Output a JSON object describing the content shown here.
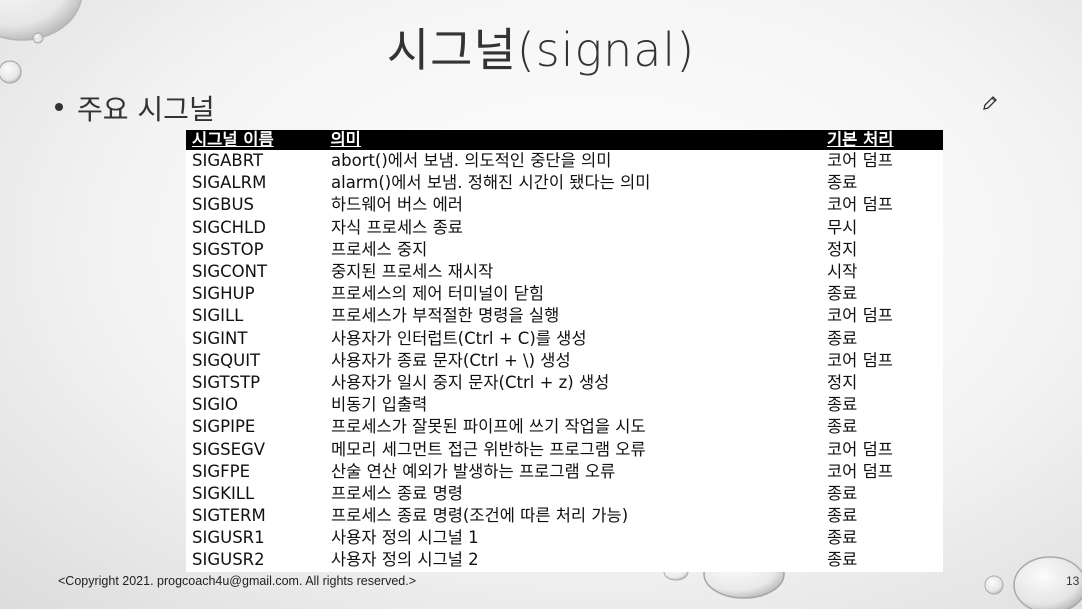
{
  "slide": {
    "title": "시그널(signal)",
    "bullet": "주요 시그널",
    "copyright": "<Copyright 2021. progcoach4u@gmail.com. All rights reserved.>",
    "page_number": "13"
  },
  "table": {
    "headers": [
      "시그널 이름",
      "의미",
      "기본 처리"
    ],
    "rows": [
      [
        "SIGABRT",
        "abort()에서 보냄. 의도적인 중단을 의미",
        "코어 덤프"
      ],
      [
        "SIGALRM",
        "alarm()에서 보냄. 정해진 시간이 됐다는 의미",
        "종료"
      ],
      [
        "SIGBUS",
        "하드웨어 버스 에러",
        "코어 덤프"
      ],
      [
        "SIGCHLD",
        "자식 프로세스 종료",
        "무시"
      ],
      [
        "SIGSTOP",
        "프로세스 중지",
        "정지"
      ],
      [
        "SIGCONT",
        "중지된 프로세스 재시작",
        "시작"
      ],
      [
        "SIGHUP",
        "프로세스의 제어 터미널이 닫힘",
        "종료"
      ],
      [
        "SIGILL",
        "프로세스가 부적절한 명령을 실행",
        "코어 덤프"
      ],
      [
        "SIGINT",
        "사용자가 인터럽트(Ctrl + C)를 생성",
        "종료"
      ],
      [
        "SIGQUIT",
        "사용자가 종료 문자(Ctrl + \\) 생성",
        "코어 덤프"
      ],
      [
        "SIGTSTP",
        "사용자가 일시 중지 문자(Ctrl + z) 생성",
        "정지"
      ],
      [
        "SIGIO",
        "비동기 입출력",
        "종료"
      ],
      [
        "SIGPIPE",
        "프로세스가 잘못된 파이프에 쓰기 작업을 시도",
        "종료"
      ],
      [
        "SIGSEGV",
        "메모리 세그먼트 접근 위반하는 프로그램 오류",
        "코어 덤프"
      ],
      [
        "SIGFPE",
        "산술 연산 예외가 발생하는 프로그램 오류",
        "코어 덤프"
      ],
      [
        "SIGKILL",
        "프로세스 종료 명령",
        "종료"
      ],
      [
        "SIGTERM",
        "프로세스 종료 명령(조건에 따른 처리 가능)",
        "종료"
      ],
      [
        "SIGUSR1",
        "사용자 정의 시그널 1",
        "종료"
      ],
      [
        "SIGUSR2",
        "사용자 정의 시그널 2",
        "종료"
      ]
    ]
  },
  "icons": {
    "edit": "pencil-icon"
  }
}
